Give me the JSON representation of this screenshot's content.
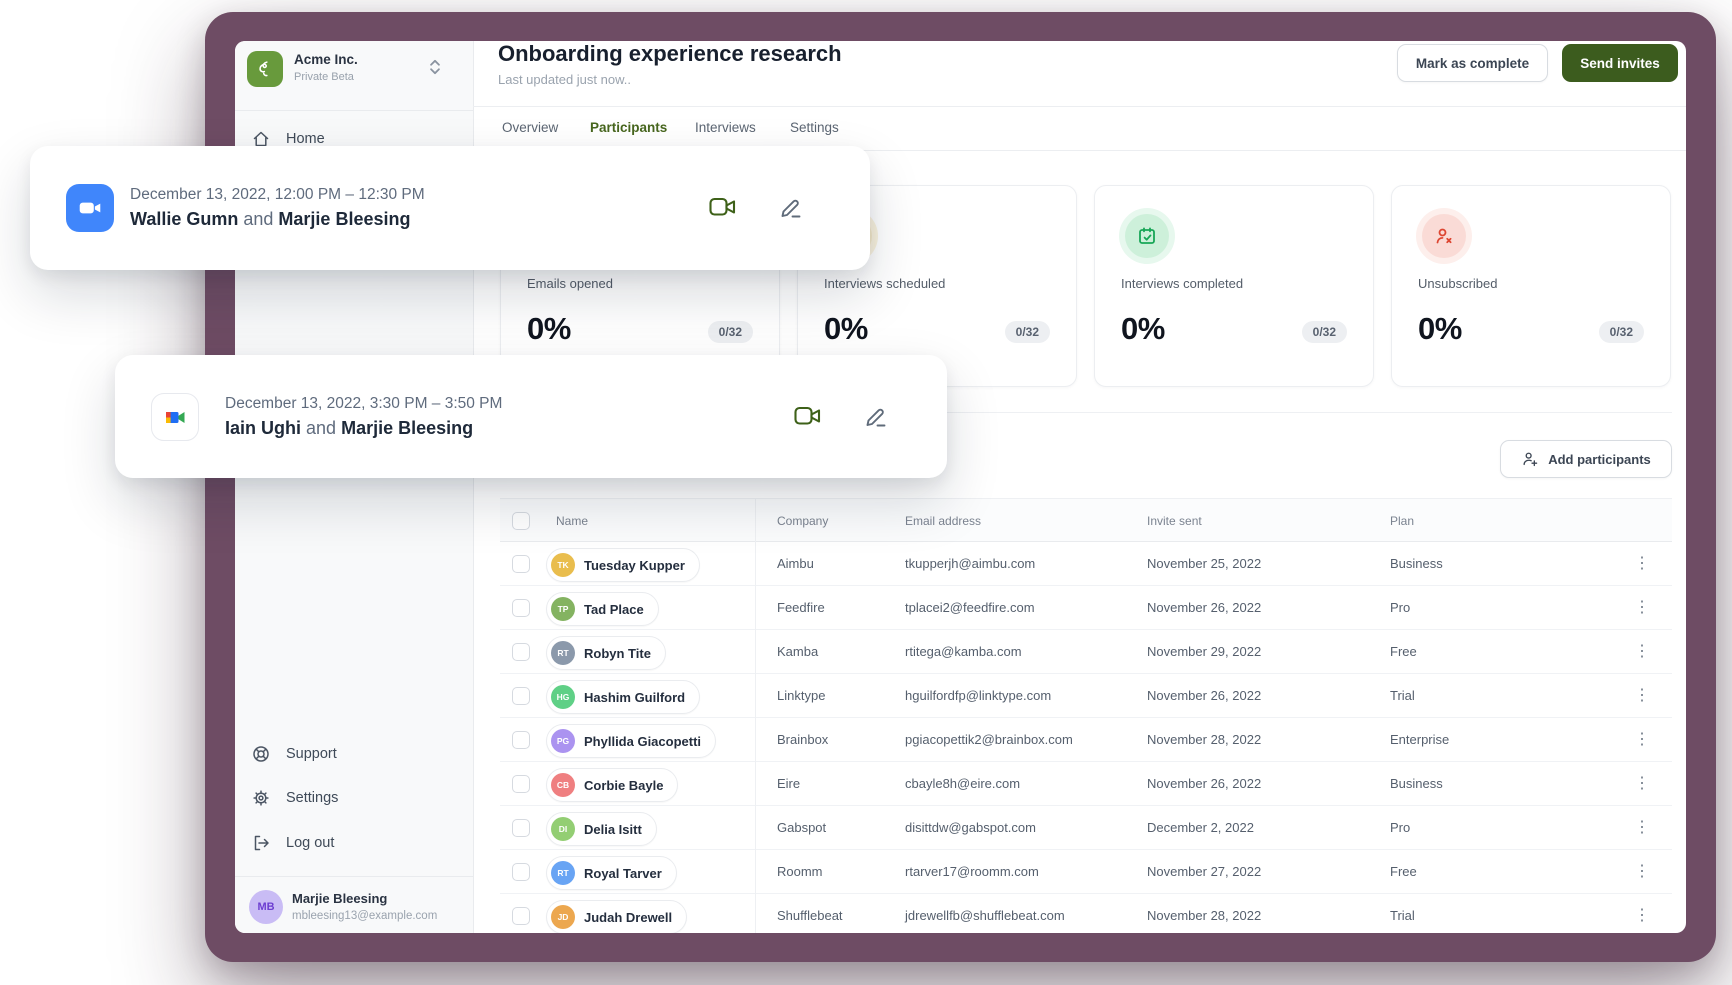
{
  "frame": {
    "accent_color": "#6e4c64",
    "brand_green": "#3c5c1e"
  },
  "sidebar": {
    "workspace": {
      "name": "Acme Inc.",
      "badge": "Private Beta"
    },
    "nav": {
      "home": "Home"
    },
    "footer": {
      "support": "Support",
      "settings": "Settings",
      "logout": "Log out"
    },
    "user": {
      "initials": "MB",
      "name": "Marjie Bleesing",
      "email": "mbleesing13@example.com"
    }
  },
  "header": {
    "title": "Onboarding experience research",
    "subtitle": "Last updated just now..",
    "mark_complete_label": "Mark as complete",
    "send_invites_label": "Send invites"
  },
  "tabs": {
    "overview": "Overview",
    "participants": "Participants",
    "interviews": "Interviews",
    "settings": "Settings",
    "active_tab": "Participants"
  },
  "stats": [
    {
      "label": "Emails opened",
      "value": "0%",
      "count": "0/32",
      "icon": "mail-icon",
      "color": "#d9a514"
    },
    {
      "label": "Interviews scheduled",
      "value": "0%",
      "count": "0/32",
      "icon": "calendar-icon",
      "color": "#d9a514"
    },
    {
      "label": "Interviews completed",
      "value": "0%",
      "count": "0/32",
      "icon": "calendar-check-icon",
      "color": "#18a657"
    },
    {
      "label": "Unsubscribed",
      "value": "0%",
      "count": "0/32",
      "icon": "user-x-icon",
      "color": "#dd4631"
    }
  ],
  "meetings": [
    {
      "provider": "zoom",
      "datetime": "December 13, 2022, 12:00 PM – 12:30 PM",
      "participant_1": "Wallie Gumn",
      "conjunction": "and",
      "participant_2": "Marjie Bleesing"
    },
    {
      "provider": "google-meet",
      "datetime": "December 13, 2022, 3:30 PM – 3:50 PM",
      "participant_1": "Iain Ughi",
      "conjunction": "and",
      "participant_2": "Marjie Bleesing"
    }
  ],
  "participants_table": {
    "add_button_label": "Add participants",
    "columns": {
      "name": "Name",
      "company": "Company",
      "email": "Email address",
      "invite_sent": "Invite sent",
      "plan": "Plan"
    },
    "rows": [
      {
        "initials": "TK",
        "name": "Tuesday Kupper",
        "company": "Aimbu",
        "email": "tkupperjh@aimbu.com",
        "invite_sent": "November 25, 2022",
        "plan": "Business",
        "avatar_color": "#e9bd4d"
      },
      {
        "initials": "TP",
        "name": "Tad Place",
        "company": "Feedfire",
        "email": "tplacei2@feedfire.com",
        "invite_sent": "November 26, 2022",
        "plan": "Pro",
        "avatar_color": "#84b361"
      },
      {
        "initials": "RT",
        "name": "Robyn Tite",
        "company": "Kamba",
        "email": "rtitega@kamba.com",
        "invite_sent": "November 29, 2022",
        "plan": "Free",
        "avatar_color": "#8b99ab"
      },
      {
        "initials": "HG",
        "name": "Hashim Guilford",
        "company": "Linktype",
        "email": "hguilfordfp@linktype.com",
        "invite_sent": "November 26, 2022",
        "plan": "Trial",
        "avatar_color": "#5fd086"
      },
      {
        "initials": "PG",
        "name": "Phyllida Giacopetti",
        "company": "Brainbox",
        "email": "pgiacopettik2@brainbox.com",
        "invite_sent": "November 28, 2022",
        "plan": "Enterprise",
        "avatar_color": "#ab93f0"
      },
      {
        "initials": "CB",
        "name": "Corbie Bayle",
        "company": "Eire",
        "email": "cbayle8h@eire.com",
        "invite_sent": "November 26, 2022",
        "plan": "Business",
        "avatar_color": "#ef7f80"
      },
      {
        "initials": "DI",
        "name": "Delia Isitt",
        "company": "Gabspot",
        "email": "disittdw@gabspot.com",
        "invite_sent": "December 2, 2022",
        "plan": "Pro",
        "avatar_color": "#93ce73"
      },
      {
        "initials": "RT",
        "name": "Royal Tarver",
        "company": "Roomm",
        "email": "rtarver17@roomm.com",
        "invite_sent": "November 27, 2022",
        "plan": "Free",
        "avatar_color": "#68a4f4"
      },
      {
        "initials": "JD",
        "name": "Judah Drewell",
        "company": "Shufflebeat",
        "email": "jdrewellfb@shufflebeat.com",
        "invite_sent": "November 28, 2022",
        "plan": "Trial",
        "avatar_color": "#eca74f"
      }
    ]
  }
}
